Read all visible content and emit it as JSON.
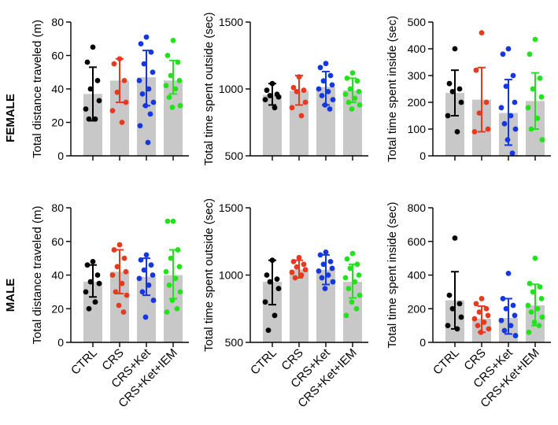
{
  "row_labels": [
    "FEMALE",
    "MALE"
  ],
  "chart_data": [
    {
      "type": "bar",
      "row": "FEMALE",
      "col": 0,
      "ylabel": "Total distance traveled (m)",
      "ylim": [
        0,
        80
      ],
      "yticks": [
        0,
        20,
        40,
        60,
        80
      ],
      "categories": [
        "CTRL",
        "CRS",
        "CRS+Ket",
        "CRS+Ket+IEM"
      ],
      "means": [
        37,
        45,
        47,
        45
      ],
      "err_low": [
        21,
        32,
        30,
        37
      ],
      "err_high": [
        53,
        58,
        63,
        57
      ],
      "points": [
        [
          65,
          56,
          45,
          40,
          33,
          28,
          22,
          22
        ],
        [
          58,
          55,
          45,
          38,
          32,
          27,
          20
        ],
        [
          71,
          67,
          62,
          55,
          50,
          45,
          40,
          37,
          32,
          30,
          25,
          18,
          8
        ],
        [
          69,
          60,
          56,
          48,
          45,
          42,
          40,
          35,
          30,
          29
        ]
      ]
    },
    {
      "type": "bar",
      "row": "FEMALE",
      "col": 1,
      "ylabel": "Total time spent outside (sec)",
      "ylim": [
        500,
        1500
      ],
      "yticks": [
        500,
        1000,
        1500
      ],
      "categories": [
        "CTRL",
        "CRS",
        "CRS+Ket",
        "CRS+Ket+IEM"
      ],
      "means": [
        955,
        985,
        1015,
        990
      ],
      "err_low": [
        880,
        880,
        880,
        900
      ],
      "err_high": [
        1040,
        1100,
        1130,
        1080
      ],
      "points": [
        [
          1040,
          990,
          960,
          950,
          940,
          920,
          860
        ],
        [
          1090,
          1010,
          990,
          980,
          900,
          860,
          800
        ],
        [
          1190,
          1160,
          1100,
          1060,
          1030,
          1000,
          980,
          950,
          920,
          880,
          850
        ],
        [
          1120,
          1080,
          1060,
          1000,
          980,
          960,
          930,
          900,
          880,
          850
        ]
      ]
    },
    {
      "type": "bar",
      "row": "FEMALE",
      "col": 2,
      "ylabel": "Total time spent inside (sec)",
      "ylim": [
        0,
        500
      ],
      "yticks": [
        0,
        100,
        200,
        300,
        400,
        500
      ],
      "categories": [
        "CTRL",
        "CRS",
        "CRS+Ket",
        "CRS+Ket+IEM"
      ],
      "means": [
        235,
        210,
        160,
        205
      ],
      "err_low": [
        150,
        90,
        40,
        100
      ],
      "err_high": [
        320,
        330,
        285,
        310
      ],
      "points": [
        [
          400,
          270,
          250,
          240,
          200,
          150,
          90
        ],
        [
          460,
          320,
          200,
          160,
          100,
          90
        ],
        [
          400,
          380,
          300,
          260,
          200,
          180,
          150,
          120,
          100,
          60,
          10
        ],
        [
          435,
          380,
          290,
          250,
          220,
          180,
          140,
          100,
          60
        ]
      ]
    },
    {
      "type": "bar",
      "row": "MALE",
      "col": 0,
      "ylabel": "Total distance traveled (m)",
      "ylim": [
        0,
        80
      ],
      "yticks": [
        0,
        20,
        40,
        60,
        80
      ],
      "categories": [
        "CTRL",
        "CRS",
        "CRS+Ket",
        "CRS+Ket+IEM"
      ],
      "means": [
        36,
        42,
        39,
        40
      ],
      "err_low": [
        27,
        29,
        28,
        26
      ],
      "err_high": [
        46,
        55,
        50,
        55
      ],
      "points": [
        [
          48,
          46,
          40,
          36,
          35,
          30,
          24,
          20
        ],
        [
          58,
          55,
          50,
          45,
          42,
          40,
          35,
          30,
          28,
          22,
          18
        ],
        [
          52,
          49,
          46,
          43,
          40,
          38,
          34,
          30,
          25,
          15
        ],
        [
          72,
          72,
          55,
          50,
          45,
          42,
          38,
          34,
          30,
          25,
          20,
          18
        ]
      ]
    },
    {
      "type": "bar",
      "row": "MALE",
      "col": 1,
      "ylabel": "Total time spent outside (sec)",
      "ylim": [
        500,
        1500
      ],
      "yticks": [
        500,
        1000,
        1500
      ],
      "categories": [
        "CTRL",
        "CRS",
        "CRS+Ket",
        "CRS+Ket+IEM"
      ],
      "means": [
        950,
        1040,
        1040,
        950
      ],
      "err_low": [
        780,
        980,
        930,
        830
      ],
      "err_high": [
        1110,
        1110,
        1150,
        1080
      ],
      "points": [
        [
          1110,
          1000,
          970,
          950,
          900,
          800,
          700,
          590
        ],
        [
          1130,
          1100,
          1080,
          1060,
          1040,
          1020,
          1000,
          980
        ],
        [
          1170,
          1150,
          1100,
          1080,
          1050,
          1030,
          1000,
          980,
          950,
          900
        ],
        [
          1160,
          1120,
          1080,
          1050,
          1000,
          980,
          950,
          900,
          850,
          800,
          750,
          700
        ]
      ]
    },
    {
      "type": "bar",
      "row": "MALE",
      "col": 2,
      "ylabel": "Total time spent inside (sec)",
      "ylim": [
        0,
        800
      ],
      "yticks": [
        0,
        200,
        400,
        600,
        800
      ],
      "categories": [
        "CTRL",
        "CRS",
        "CRS+Ket",
        "CRS+Ket+IEM"
      ],
      "means": [
        250,
        140,
        145,
        220
      ],
      "err_low": [
        80,
        60,
        50,
        100
      ],
      "err_high": [
        420,
        215,
        260,
        345
      ],
      "points": [
        [
          620,
          280,
          230,
          200,
          150,
          100,
          80
        ],
        [
          260,
          230,
          200,
          180,
          160,
          140,
          120,
          100,
          80,
          60
        ],
        [
          410,
          260,
          220,
          200,
          160,
          130,
          100,
          70,
          40
        ],
        [
          500,
          350,
          330,
          300,
          260,
          220,
          200,
          180,
          150,
          120,
          100,
          60
        ]
      ]
    }
  ],
  "group_colors": [
    "#000000",
    "#e8391e",
    "#1537e0",
    "#22e31b"
  ],
  "bar_color": "#c8c8c8"
}
